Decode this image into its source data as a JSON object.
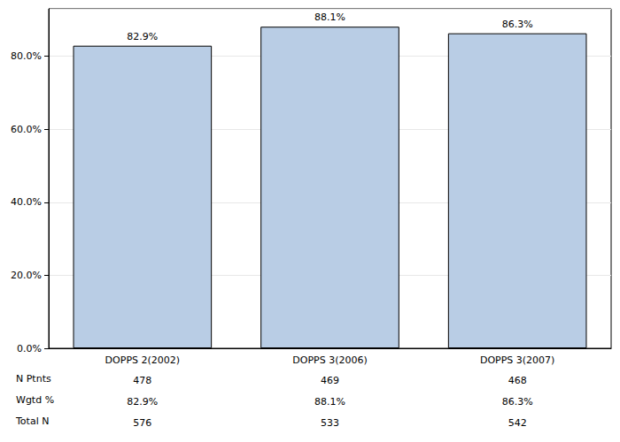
{
  "chart_data": {
    "type": "bar",
    "categories": [
      "DOPPS 2(2002)",
      "DOPPS 3(2006)",
      "DOPPS 3(2007)"
    ],
    "values": [
      82.9,
      88.1,
      86.3
    ],
    "value_labels": [
      "82.9%",
      "88.1%",
      "86.3%"
    ],
    "data_labels": true,
    "color": "#b9cde5",
    "ylim": [
      0,
      93
    ],
    "yticks": [
      {
        "value": 0,
        "label": "0.0%"
      },
      {
        "value": 20,
        "label": "20.0%"
      },
      {
        "value": 40,
        "label": "40.0%"
      },
      {
        "value": 60,
        "label": "60.0%"
      },
      {
        "value": 80,
        "label": "80.0%"
      }
    ],
    "grid": true,
    "table": [
      {
        "label": "N Ptnts",
        "values": [
          478,
          469,
          468
        ]
      },
      {
        "label": "Wgtd %",
        "values": [
          82.9,
          88.1,
          86.3
        ],
        "value_labels": [
          "82.9%",
          "88.1%",
          "86.3%"
        ]
      },
      {
        "label": "Total N",
        "values": [
          576,
          533,
          542
        ]
      }
    ]
  }
}
